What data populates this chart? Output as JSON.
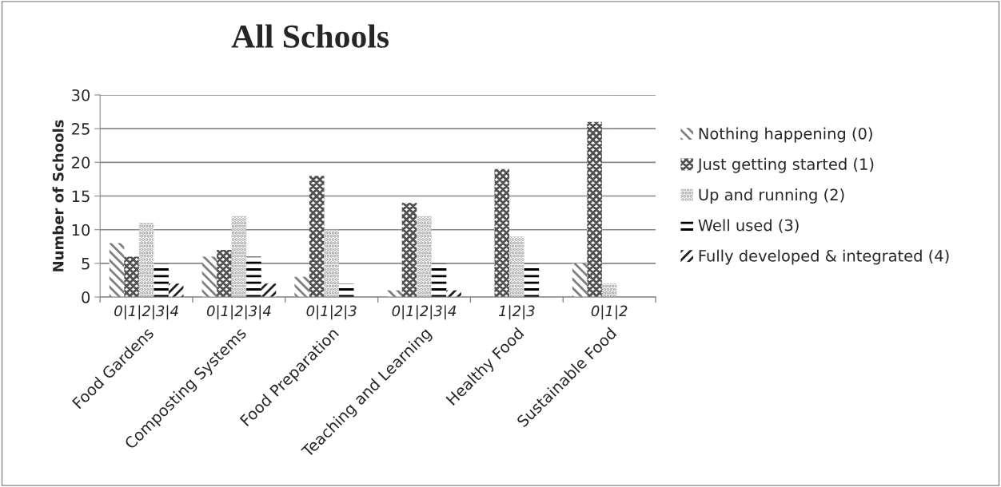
{
  "chart_data": {
    "type": "bar",
    "title": "All Schools",
    "ylabel": "Number of Schools",
    "categories": [
      "Food Gardens",
      "Composting Systems",
      "Food Preparation",
      "Teaching and Learning",
      "Healthy Food",
      "Sustainable Food"
    ],
    "series": [
      {
        "name": "Nothing happening (0)",
        "color": "#7f7f7f",
        "values": [
          8,
          6,
          3,
          1,
          null,
          5
        ]
      },
      {
        "name": "Just getting started (1)",
        "color": "#505050",
        "values": [
          6,
          7,
          18,
          14,
          19,
          26
        ]
      },
      {
        "name": "Up and running (2)",
        "color": "#9a9a9a",
        "values": [
          11,
          12,
          10,
          12,
          9,
          2
        ]
      },
      {
        "name": "Well used (3)",
        "color": "#000000",
        "values": [
          5,
          6,
          2,
          5,
          5,
          null
        ]
      },
      {
        "name": "Fully developed & integrated (4)",
        "color": "#202020",
        "values": [
          2,
          2,
          null,
          1,
          null,
          null
        ]
      }
    ],
    "ylim": [
      0,
      30
    ],
    "yticks": [
      0,
      5,
      10,
      15,
      20,
      25,
      30
    ],
    "grid": "y",
    "legend": "right",
    "annotations": [
      "0|1|2|3|4",
      "0|1|2|3|4",
      "0|1|2|3",
      "0|1|2|3|4",
      "1|2|3",
      "0|1|2"
    ]
  }
}
